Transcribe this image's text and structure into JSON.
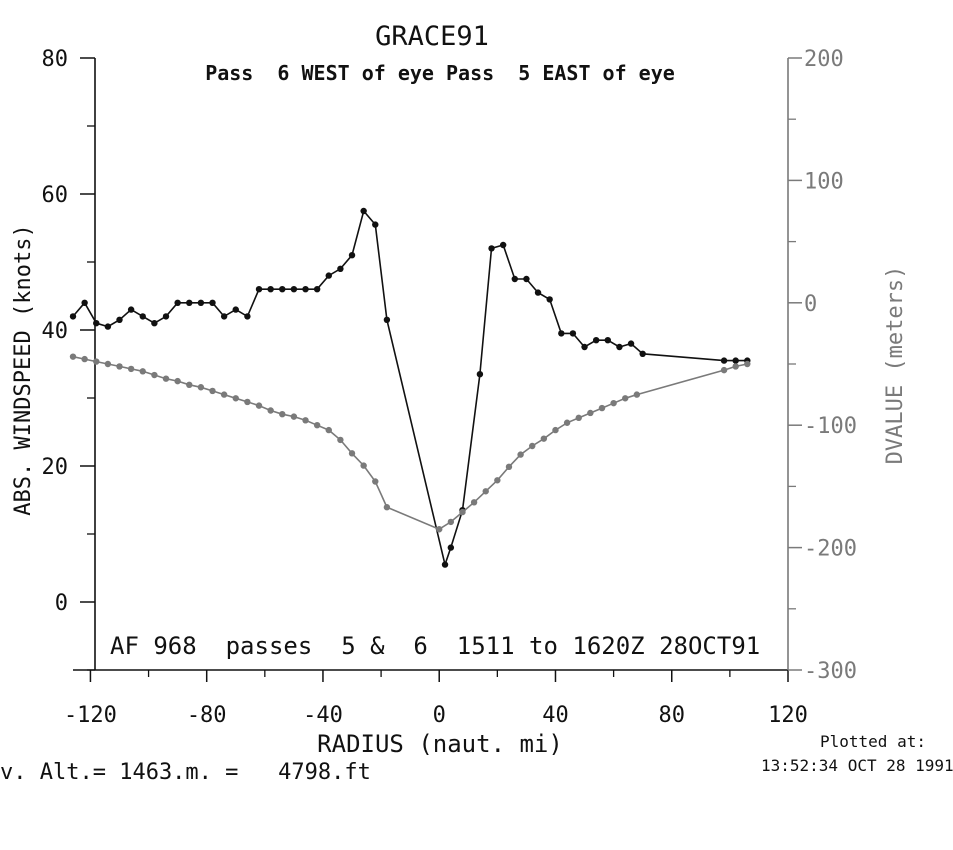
{
  "chart_data": {
    "type": "line",
    "title": "GRACE91",
    "subtitle": "Pass  6 WEST of eye Pass  5 EAST of eye",
    "xlabel": "RADIUS (naut. mi)",
    "ylabel": "ABS. WINDSPEED (knots)",
    "y2label": "DVALUE (meters)",
    "xlim": [
      -126,
      120
    ],
    "ylim": [
      -10,
      80
    ],
    "y2lim": [
      -300,
      200
    ],
    "x_ticks": [
      "-120",
      "-80",
      "-40",
      "0",
      "40",
      "80",
      "120"
    ],
    "y_ticks": [
      "0",
      "20",
      "40",
      "60",
      "80"
    ],
    "y2_ticks": [
      "-300",
      "-200",
      "-100",
      "0",
      "100",
      "200"
    ],
    "annotation": "AF 968  passes  5 &  6  1511 to 1620Z 28OCT91",
    "series": [
      {
        "axis": "left",
        "color": "#111111",
        "x": [
          -126,
          -122,
          -118,
          -114,
          -110,
          -106,
          -102,
          -98,
          -94,
          -90,
          -86,
          -82,
          -78,
          -74,
          -70,
          -66,
          -62,
          -58,
          -54,
          -50,
          -46,
          -42,
          -38,
          -34,
          -30,
          -26,
          -22,
          -18,
          2,
          4,
          8,
          14,
          18,
          22,
          26,
          30,
          34,
          38,
          42,
          46,
          50,
          54,
          58,
          62,
          66,
          70,
          98,
          102,
          106
        ],
        "y": [
          42,
          44,
          41,
          40.5,
          41.5,
          43,
          42,
          41,
          42,
          44,
          44,
          44,
          44,
          42,
          43,
          42,
          46,
          46,
          46,
          46,
          46,
          46,
          48,
          49,
          51,
          57.5,
          55.5,
          41.5,
          5.5,
          8,
          13.5,
          33.5,
          52,
          52.5,
          47.5,
          47.5,
          45.5,
          44.5,
          39.5,
          39.5,
          37.5,
          38.5,
          38.5,
          37.5,
          38,
          36.5,
          35.5,
          35.5,
          35.5
        ]
      },
      {
        "axis": "right",
        "color": "#7a7a7a",
        "x": [
          -126,
          -122,
          -118,
          -114,
          -110,
          -106,
          -102,
          -98,
          -94,
          -90,
          -86,
          -82,
          -78,
          -74,
          -70,
          -66,
          -62,
          -58,
          -54,
          -50,
          -46,
          -42,
          -38,
          -34,
          -30,
          -26,
          -22,
          -18,
          0,
          4,
          8,
          12,
          16,
          20,
          24,
          28,
          32,
          36,
          40,
          44,
          48,
          52,
          56,
          60,
          64,
          68,
          98,
          102,
          106
        ],
        "y": [
          -44,
          -46,
          -48,
          -50,
          -52,
          -54,
          -56,
          -59,
          -62,
          -64,
          -67,
          -69,
          -72,
          -75,
          -78,
          -81,
          -84,
          -88,
          -91,
          -93,
          -96,
          -100,
          -104,
          -112,
          -123,
          -133,
          -146,
          -167,
          -185,
          -179,
          -171,
          -163,
          -154,
          -145,
          -134,
          -124,
          -117,
          -111,
          -104,
          -98,
          -94,
          -90,
          -86,
          -82,
          -78,
          -75,
          -55,
          -52,
          -50
        ]
      }
    ]
  },
  "footer": {
    "altitude": "v. Alt.= 1463.m. =   4798.ft",
    "plotted_label": "Plotted at:",
    "plotted_time": "13:52:34 OCT 28 1991"
  }
}
